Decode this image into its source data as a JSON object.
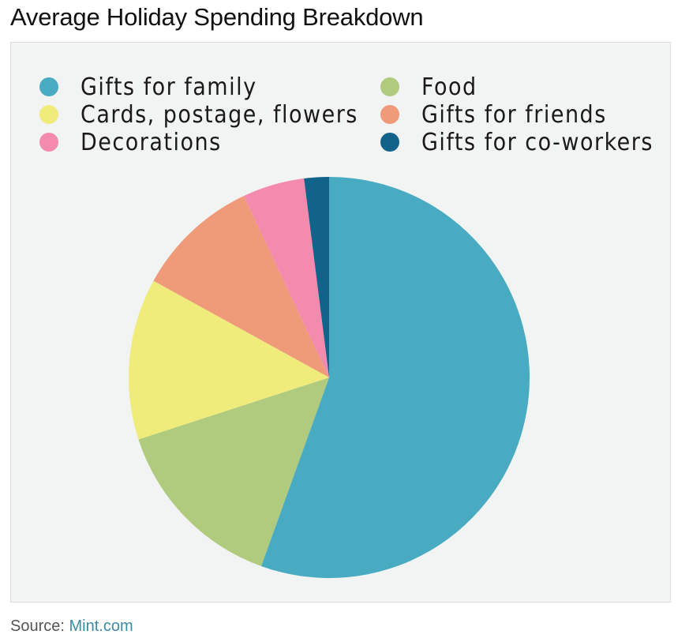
{
  "title": "Average Holiday Spending Breakdown",
  "source": {
    "label": "Source:",
    "link": "Mint.com"
  },
  "chart_data": {
    "type": "pie",
    "title": "Average Holiday Spending Breakdown",
    "legend_placement": "top",
    "slices": [
      {
        "name": "Gifts for family",
        "value": 55.5,
        "color": "#48abc1"
      },
      {
        "name": "Food",
        "value": 14.5,
        "color": "#b0ca7e"
      },
      {
        "name": "Cards, postage, flowers",
        "value": 13.0,
        "color": "#f0ec7c"
      },
      {
        "name": "Gifts for friends",
        "value": 10.0,
        "color": "#ef9b79"
      },
      {
        "name": "Decorations",
        "value": 5.0,
        "color": "#f48aae"
      },
      {
        "name": "Gifts for co-workers",
        "value": 2.0,
        "color": "#116389"
      }
    ],
    "legend_order": [
      "Gifts for family",
      "Food",
      "Cards, postage, flowers",
      "Gifts for friends",
      "Decorations",
      "Gifts for co-workers"
    ]
  }
}
